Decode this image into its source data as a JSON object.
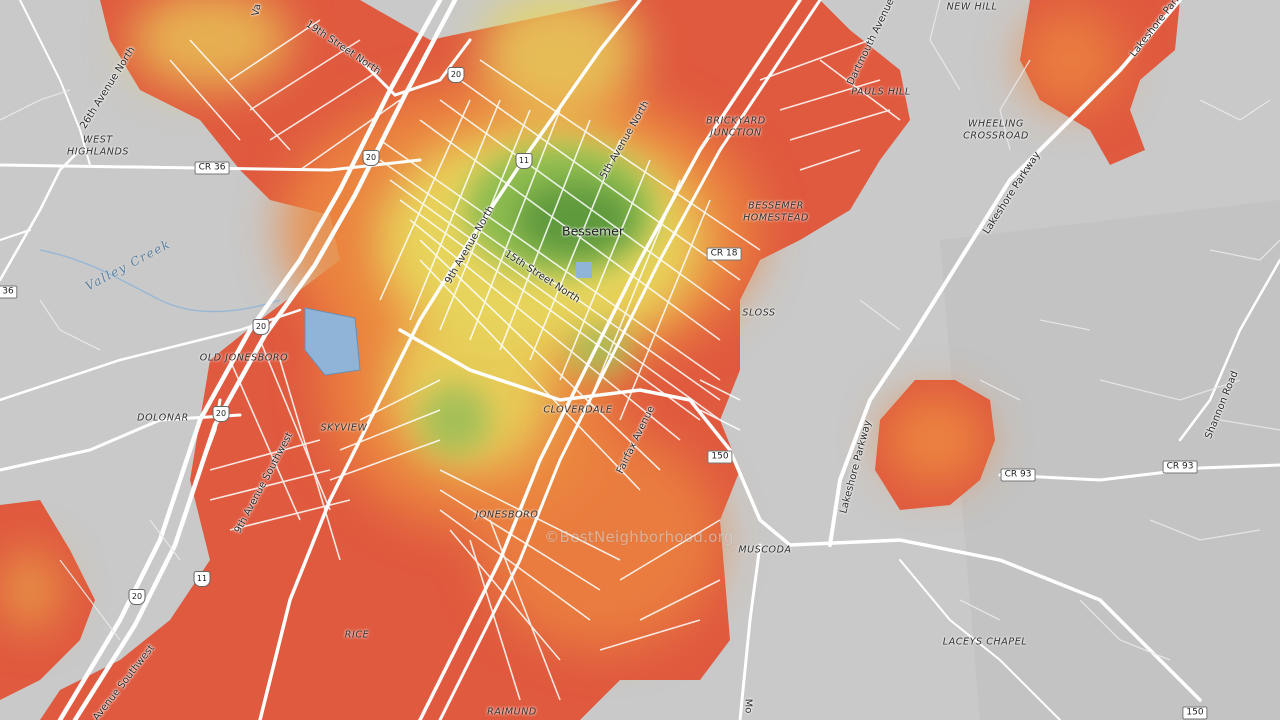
{
  "map": {
    "city": "Bessemer",
    "watermark": "©BestNeighborhood.org",
    "colors": {
      "land": "#c9c9c9",
      "road": "#ffffff",
      "high": "#5e9a3e",
      "mid": "#e7d45c",
      "low": "#e2553b",
      "water": "#8fb4d8"
    },
    "places": {
      "new_hill": "NEW HILL",
      "pauls_hill": "PAULS HILL",
      "brickyard_junction_1": "BRICKYARD",
      "brickyard_junction_2": "JUNCTION",
      "wheeling_crossroad_1": "WHEELING",
      "wheeling_crossroad_2": "CROSSROAD",
      "west_highlands_1": "WEST",
      "west_highlands_2": "HIGHLANDS",
      "bessemer_homestead_1": "BESSEMER",
      "bessemer_homestead_2": "HOMESTEAD",
      "sloss": "SLOSS",
      "old_jonesboro": "OLD JONESBORO",
      "dolonar": "DOLONAR",
      "skyview": "SKYVIEW",
      "cloverdale": "CLOVERDALE",
      "jonesboro": "JONESBORO",
      "muscoda": "MUSCODA",
      "rice": "RICE",
      "laceys_chapel": "LACEYS CHAPEL",
      "raimund": "RAIMUND"
    },
    "streets": {
      "avenue_26th_north": "26th Avenue North",
      "street_19th_north": "19th Street North",
      "avenue_5th_north": "5th Avenue North",
      "avenue_9th_north": "9th Avenue North",
      "street_15th_north": "15th Street North",
      "avenue_9th_southwest": "9th Avenue Southwest",
      "fairfax_avenue": "Fairfax Avenue",
      "dartmouth_avenue": "Dartmouth Avenue",
      "lakeshore_parkway_1": "Lakeshore Parkway",
      "lakeshore_parkway_2": "Lakeshore Parkway",
      "lakeshore_parkway_3": "Lakeshore Parkway",
      "shannon_road": "Shannon Road",
      "avenue_southwest": "Avenue Southwest",
      "valley_partial": "Va",
      "morgan_partial": "Mo"
    },
    "water": {
      "valley_creek": "Valley Creek"
    },
    "shields": {
      "cr36_a": "CR 36",
      "cr36_b": "36",
      "cr18": "CR 18",
      "cr93": "CR 93",
      "r150_a": "150",
      "r150_b": "150",
      "i20_a": "20",
      "i20_b": "20",
      "i20_c": "20",
      "i20_d": "20",
      "i20_e": "20",
      "us11_a": "11",
      "us11_b": "11"
    }
  }
}
